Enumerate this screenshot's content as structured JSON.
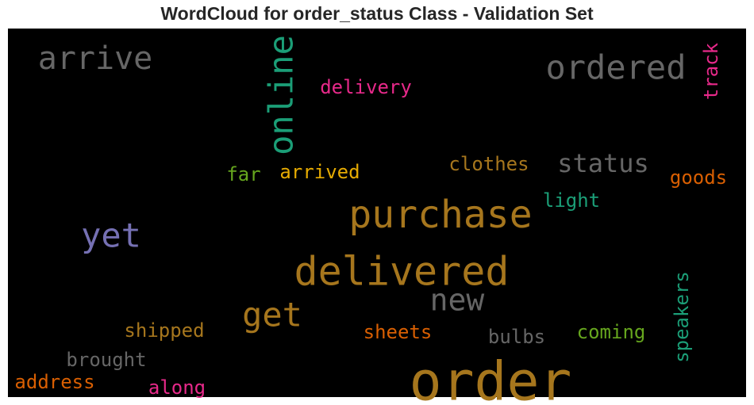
{
  "chart_data": {
    "type": "wordcloud",
    "title": "WordCloud for order_status Class - Validation Set",
    "background": "#000000",
    "words": [
      {
        "text": "order",
        "color": "#a6761d",
        "rank": 1
      },
      {
        "text": "delivered",
        "color": "#a6761d",
        "rank": 2
      },
      {
        "text": "purchase",
        "color": "#a6761d",
        "rank": 3
      },
      {
        "text": "online",
        "color": "#1b9e77",
        "rank": 4
      },
      {
        "text": "yet",
        "color": "#7570b3",
        "rank": 5
      },
      {
        "text": "ordered",
        "color": "#666666",
        "rank": 6
      },
      {
        "text": "arrive",
        "color": "#666666",
        "rank": 7
      },
      {
        "text": "get",
        "color": "#a6761d",
        "rank": 8
      },
      {
        "text": "new",
        "color": "#666666",
        "rank": 9
      },
      {
        "text": "status",
        "color": "#666666",
        "rank": 10
      },
      {
        "text": "speakers",
        "color": "#1b9e77",
        "rank": 11
      },
      {
        "text": "track",
        "color": "#e7298a",
        "rank": 12
      },
      {
        "text": "delivery",
        "color": "#e7298a",
        "rank": 13
      },
      {
        "text": "clothes",
        "color": "#a6761d",
        "rank": 14
      },
      {
        "text": "coming",
        "color": "#66a61e",
        "rank": 15
      },
      {
        "text": "shipped",
        "color": "#a6761d",
        "rank": 16
      },
      {
        "text": "goods",
        "color": "#d95f02",
        "rank": 17
      },
      {
        "text": "light",
        "color": "#1b9e77",
        "rank": 18
      },
      {
        "text": "arrived",
        "color": "#e6ab02",
        "rank": 19
      },
      {
        "text": "sheets",
        "color": "#d95f02",
        "rank": 20
      },
      {
        "text": "bulbs",
        "color": "#666666",
        "rank": 21
      },
      {
        "text": "brought",
        "color": "#666666",
        "rank": 22
      },
      {
        "text": "address",
        "color": "#d95f02",
        "rank": 23
      },
      {
        "text": "along",
        "color": "#e7298a",
        "rank": 24
      },
      {
        "text": "far",
        "color": "#66a61e",
        "rank": 25
      }
    ]
  }
}
